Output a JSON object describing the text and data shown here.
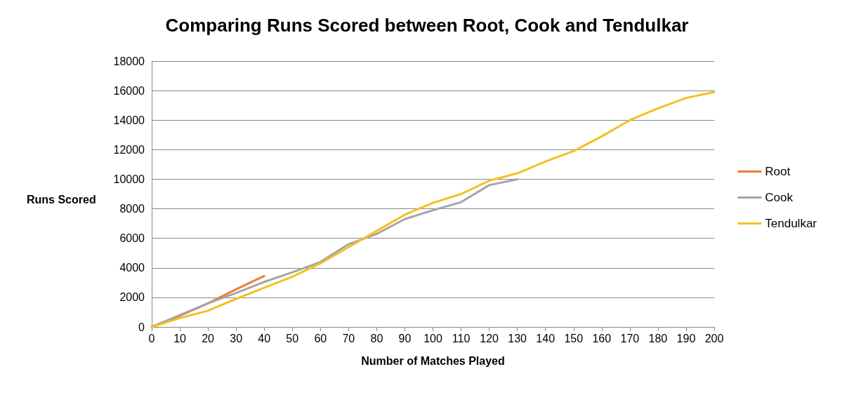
{
  "chart_data": {
    "type": "line",
    "title": "Comparing Runs Scored between Root, Cook and Tendulkar",
    "xlabel": "Number of Matches Played",
    "ylabel": "Runs Scored",
    "series": [
      {
        "name": "Root",
        "color": "#ed7d31",
        "x": [
          0,
          10,
          20,
          30,
          40
        ],
        "values": [
          0,
          750,
          1600,
          2550,
          3450
        ]
      },
      {
        "name": "Cook",
        "color": "#a5a5a5",
        "x": [
          0,
          10,
          20,
          30,
          40,
          50,
          60,
          70,
          80,
          90,
          100,
          110,
          120,
          130
        ],
        "values": [
          0,
          800,
          1600,
          2300,
          3050,
          3700,
          4400,
          5600,
          6300,
          7300,
          7900,
          8450,
          9600,
          10000
        ]
      },
      {
        "name": "Tendulkar",
        "color": "#f5c020",
        "x": [
          0,
          10,
          20,
          30,
          40,
          50,
          60,
          70,
          80,
          90,
          100,
          110,
          120,
          130,
          140,
          150,
          160,
          170,
          180,
          190,
          200
        ],
        "values": [
          0,
          600,
          1100,
          1900,
          2650,
          3400,
          4300,
          5400,
          6500,
          7600,
          8400,
          9000,
          9900,
          10400,
          11200,
          11900,
          12900,
          14000,
          14800,
          15500,
          15900
        ]
      }
    ],
    "xlim": [
      0,
      200
    ],
    "xticks": [
      0,
      10,
      20,
      30,
      40,
      50,
      60,
      70,
      80,
      90,
      100,
      110,
      120,
      130,
      140,
      150,
      160,
      170,
      180,
      190,
      200
    ],
    "ylim": [
      0,
      18000
    ],
    "yticks": [
      0,
      2000,
      4000,
      6000,
      8000,
      10000,
      12000,
      14000,
      16000,
      18000
    ],
    "grid": "y",
    "legend": "right",
    "marker": "none",
    "line_style": "solid"
  }
}
